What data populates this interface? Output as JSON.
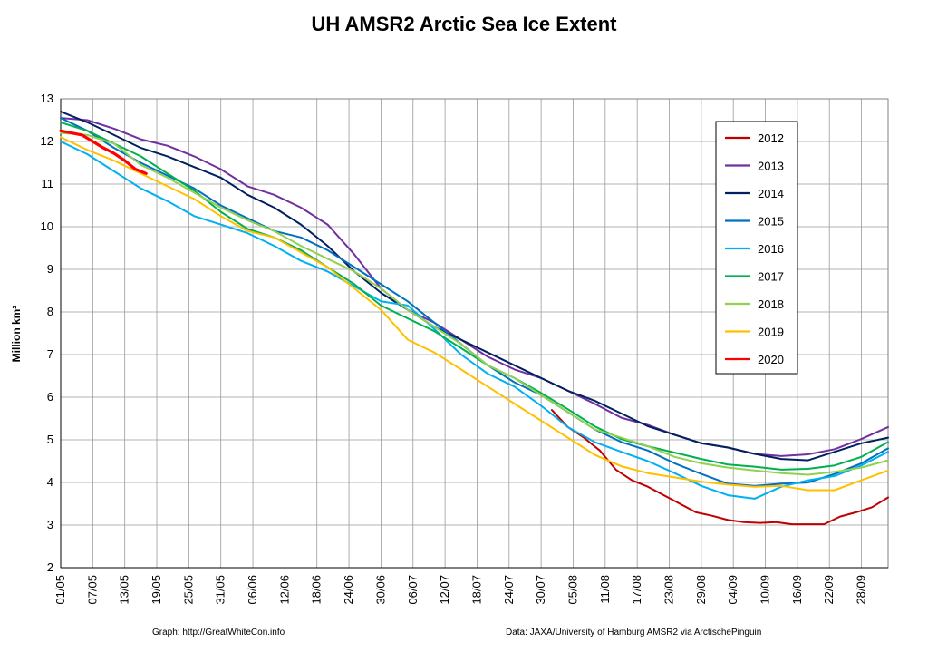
{
  "chart_data": {
    "type": "line",
    "title": "UH AMSR2 Arctic Sea Ice Extent",
    "ylabel": "Million km²",
    "ylim": [
      2,
      13
    ],
    "y_ticks": [
      2,
      3,
      4,
      5,
      6,
      7,
      8,
      9,
      10,
      11,
      12,
      13
    ],
    "x_range_days": [
      0,
      155
    ],
    "x_tick_labels": [
      "01/05",
      "07/05",
      "13/05",
      "19/05",
      "25/05",
      "31/05",
      "06/06",
      "12/06",
      "18/06",
      "24/06",
      "30/06",
      "06/07",
      "12/07",
      "18/07",
      "24/07",
      "30/07",
      "05/08",
      "11/08",
      "17/08",
      "23/08",
      "29/08",
      "04/09",
      "10/09",
      "16/09",
      "22/09",
      "28/09"
    ],
    "grid": true,
    "legend_position": "right",
    "footer_left": "Graph: http://GreatWhiteCon.info",
    "footer_right": "Data: JAXA/University of Hamburg AMSR2 via ArctischePinguin",
    "series": [
      {
        "name": "2012",
        "color": "#C00000",
        "x": [
          92,
          95,
          98,
          101,
          104,
          107,
          110,
          113,
          116,
          119,
          122,
          125,
          128,
          131,
          134,
          137,
          140,
          143,
          146,
          149,
          152,
          155
        ],
        "values": [
          5.7,
          5.3,
          5.05,
          4.75,
          4.3,
          4.05,
          3.9,
          3.7,
          3.5,
          3.3,
          3.22,
          3.12,
          3.07,
          3.05,
          3.07,
          3.02,
          3.02,
          3.02,
          3.2,
          3.3,
          3.42,
          3.65
        ]
      },
      {
        "name": "2013",
        "color": "#7030A0",
        "x": [
          0,
          5,
          10,
          15,
          20,
          25,
          30,
          35,
          40,
          45,
          50,
          55,
          60,
          65,
          70,
          75,
          80,
          85,
          90,
          95,
          100,
          105,
          110,
          115,
          120,
          125,
          130,
          135,
          140,
          145,
          150,
          155
        ],
        "values": [
          12.55,
          12.5,
          12.3,
          12.05,
          11.9,
          11.65,
          11.35,
          10.95,
          10.75,
          10.45,
          10.05,
          9.35,
          8.55,
          8.05,
          7.75,
          7.35,
          6.95,
          6.65,
          6.45,
          6.15,
          5.85,
          5.52,
          5.35,
          5.12,
          4.92,
          4.82,
          4.67,
          4.62,
          4.66,
          4.78,
          5.02,
          5.3
        ]
      },
      {
        "name": "2014",
        "color": "#002060",
        "x": [
          0,
          5,
          10,
          15,
          20,
          25,
          30,
          35,
          40,
          45,
          50,
          55,
          60,
          65,
          70,
          75,
          80,
          85,
          90,
          95,
          100,
          105,
          110,
          115,
          120,
          125,
          130,
          135,
          140,
          145,
          150,
          155
        ],
        "values": [
          12.7,
          12.45,
          12.15,
          11.85,
          11.65,
          11.4,
          11.15,
          10.75,
          10.45,
          10.05,
          9.55,
          8.95,
          8.45,
          8.05,
          7.65,
          7.35,
          7.05,
          6.75,
          6.45,
          6.15,
          5.92,
          5.62,
          5.32,
          5.12,
          4.92,
          4.82,
          4.67,
          4.55,
          4.52,
          4.72,
          4.92,
          5.05
        ]
      },
      {
        "name": "2015",
        "color": "#0070C0",
        "x": [
          0,
          5,
          10,
          15,
          20,
          25,
          30,
          35,
          40,
          45,
          50,
          55,
          60,
          65,
          70,
          75,
          80,
          85,
          90,
          95,
          100,
          105,
          110,
          115,
          120,
          125,
          130,
          135,
          140,
          145,
          150,
          155
        ],
        "values": [
          12.55,
          12.25,
          11.85,
          11.5,
          11.2,
          10.9,
          10.5,
          10.2,
          9.9,
          9.75,
          9.45,
          9.05,
          8.65,
          8.25,
          7.75,
          7.25,
          6.75,
          6.35,
          6.05,
          5.65,
          5.25,
          4.95,
          4.75,
          4.45,
          4.2,
          3.97,
          3.92,
          3.97,
          4.0,
          4.2,
          4.45,
          4.8
        ]
      },
      {
        "name": "2016",
        "color": "#00B0F0",
        "x": [
          0,
          5,
          10,
          15,
          20,
          25,
          30,
          35,
          40,
          45,
          50,
          55,
          60,
          65,
          70,
          75,
          80,
          85,
          90,
          95,
          100,
          105,
          110,
          115,
          120,
          125,
          130,
          135,
          140,
          145,
          150,
          155
        ],
        "values": [
          12.0,
          11.7,
          11.3,
          10.9,
          10.6,
          10.25,
          10.05,
          9.85,
          9.55,
          9.2,
          8.95,
          8.6,
          8.25,
          8.15,
          7.6,
          7.0,
          6.55,
          6.25,
          5.8,
          5.3,
          4.95,
          4.72,
          4.5,
          4.22,
          3.92,
          3.7,
          3.62,
          3.9,
          4.05,
          4.15,
          4.4,
          4.72
        ]
      },
      {
        "name": "2017",
        "color": "#00B050",
        "x": [
          0,
          5,
          10,
          15,
          20,
          25,
          30,
          35,
          40,
          45,
          50,
          55,
          60,
          65,
          70,
          75,
          80,
          85,
          90,
          95,
          100,
          105,
          110,
          115,
          120,
          125,
          130,
          135,
          140,
          145,
          150,
          155
        ],
        "values": [
          12.45,
          12.25,
          11.95,
          11.65,
          11.25,
          10.85,
          10.35,
          9.95,
          9.75,
          9.45,
          9.05,
          8.65,
          8.15,
          7.85,
          7.55,
          7.15,
          6.75,
          6.45,
          6.1,
          5.72,
          5.32,
          5.02,
          4.85,
          4.7,
          4.55,
          4.42,
          4.37,
          4.3,
          4.32,
          4.4,
          4.6,
          4.95
        ]
      },
      {
        "name": "2018",
        "color": "#92D050",
        "x": [
          0,
          5,
          10,
          15,
          20,
          25,
          30,
          35,
          40,
          45,
          50,
          55,
          60,
          65,
          70,
          75,
          80,
          85,
          90,
          95,
          100,
          105,
          110,
          115,
          120,
          125,
          130,
          135,
          140,
          145,
          150,
          155
        ],
        "values": [
          12.2,
          12.15,
          11.95,
          11.45,
          11.15,
          10.8,
          10.45,
          10.15,
          9.9,
          9.55,
          9.25,
          8.95,
          8.55,
          8.05,
          7.65,
          7.25,
          6.75,
          6.45,
          6.05,
          5.65,
          5.25,
          5.05,
          4.85,
          4.6,
          4.45,
          4.35,
          4.28,
          4.22,
          4.18,
          4.25,
          4.35,
          4.52
        ]
      },
      {
        "name": "2019",
        "color": "#FFC000",
        "x": [
          0,
          5,
          10,
          15,
          20,
          25,
          30,
          35,
          40,
          45,
          50,
          55,
          60,
          65,
          70,
          75,
          80,
          85,
          90,
          95,
          100,
          105,
          110,
          115,
          120,
          125,
          130,
          135,
          140,
          145,
          150,
          155
        ],
        "values": [
          12.1,
          11.8,
          11.55,
          11.25,
          10.95,
          10.65,
          10.25,
          9.9,
          9.75,
          9.4,
          9.05,
          8.55,
          8.05,
          7.35,
          7.05,
          6.65,
          6.25,
          5.85,
          5.45,
          5.05,
          4.65,
          4.38,
          4.22,
          4.12,
          4.02,
          3.95,
          3.9,
          3.92,
          3.82,
          3.82,
          4.05,
          4.28
        ]
      },
      {
        "name": "2020",
        "color": "#FF0000",
        "x": [
          0,
          2,
          4,
          6,
          8,
          10,
          12,
          14,
          16
        ],
        "values": [
          12.25,
          12.2,
          12.15,
          12.0,
          11.85,
          11.72,
          11.55,
          11.35,
          11.25
        ]
      }
    ]
  }
}
